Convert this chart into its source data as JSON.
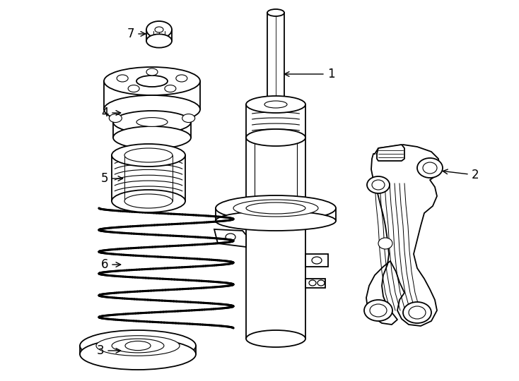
{
  "bg_color": "#ffffff",
  "line_color": "#000000",
  "lw": 1.3,
  "fig_width": 7.34,
  "fig_height": 5.4,
  "dpi": 100
}
